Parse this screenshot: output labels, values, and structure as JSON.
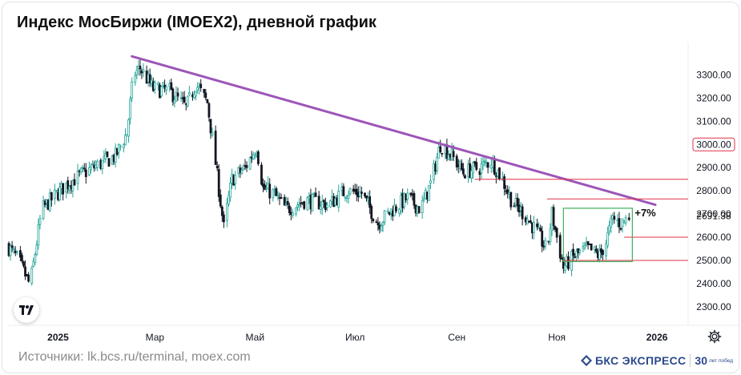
{
  "header": {
    "title": "Индекс МосБиржи (IMOEX2), дневной график"
  },
  "footer": {
    "source": "Источники: lk.bcs.ru/terminal, moex.com",
    "brand": "БКС ЭКСПРЕСС",
    "brand_badge": "30",
    "brand_badge_small": "лет побед"
  },
  "icons": {
    "platform_logo": "tradingview-logo-icon",
    "settings": "gear-icon",
    "brand_mark": "bcs-logo-icon"
  },
  "colors": {
    "up": "#26a69a",
    "down": "#131722",
    "trendline": "#9c56b8",
    "level_line": "#e0304a",
    "box": "#3fae5a",
    "current_price": "#111111"
  },
  "chart_data": {
    "type": "candlestick",
    "title": "Индекс МосБиржи (IMOEX2), дневной график",
    "x_range": [
      "2024-12-01",
      "2026-01-20"
    ],
    "ylim": [
      2220,
      3440
    ],
    "y_ticks": [
      "2300.00",
      "2400.00",
      "2500.00",
      "2600.00",
      "2700.00",
      "2800.00",
      "2900.00",
      "3000.00",
      "3100.00",
      "3200.00",
      "3300.00"
    ],
    "y_labels": {
      "2300.00": 2300,
      "2400.00": 2400,
      "2500.00": 2500,
      "2600.00": 2600,
      "2700.00": 2700,
      "2800.00": 2800,
      "2900.00": 2900,
      "3000.00": 3000,
      "3100.00": 3100,
      "3200.00": 3200,
      "3300.00": 3300
    },
    "x_ticks": [
      {
        "label": "2025",
        "date": "2025-01-01"
      },
      {
        "label": "Мар",
        "date": "2025-03-01"
      },
      {
        "label": "Май",
        "date": "2025-05-01"
      },
      {
        "label": "Июл",
        "date": "2025-07-01"
      },
      {
        "label": "Сен",
        "date": "2025-09-01"
      },
      {
        "label": "Ноя",
        "date": "2025-11-01"
      },
      {
        "label": "2026",
        "date": "2026-01-01"
      }
    ],
    "highlighted_labels": {
      "3000.00": 3000
    },
    "current_price": {
      "label": "2691.38",
      "value": 2691.38
    },
    "anchors": [
      [
        "2024-12-01",
        2565
      ],
      [
        "2024-12-08",
        2500
      ],
      [
        "2024-12-15",
        2390
      ],
      [
        "2024-12-22",
        2720
      ],
      [
        "2025-01-05",
        2820
      ],
      [
        "2025-01-15",
        2870
      ],
      [
        "2025-01-25",
        2910
      ],
      [
        "2025-02-05",
        2950
      ],
      [
        "2025-02-12",
        3050
      ],
      [
        "2025-02-16",
        3300
      ],
      [
        "2025-02-20",
        3330
      ],
      [
        "2025-02-28",
        3240
      ],
      [
        "2025-03-10",
        3230
      ],
      [
        "2025-03-20",
        3160
      ],
      [
        "2025-03-26",
        3260
      ],
      [
        "2025-04-02",
        3180
      ],
      [
        "2025-04-07",
        2920
      ],
      [
        "2025-04-12",
        2640
      ],
      [
        "2025-04-17",
        2850
      ],
      [
        "2025-04-25",
        2900
      ],
      [
        "2025-05-02",
        2990
      ],
      [
        "2025-05-06",
        2810
      ],
      [
        "2025-05-12",
        2790
      ],
      [
        "2025-05-20",
        2720
      ],
      [
        "2025-06-01",
        2760
      ],
      [
        "2025-06-15",
        2740
      ],
      [
        "2025-06-25",
        2800
      ],
      [
        "2025-07-05",
        2790
      ],
      [
        "2025-07-15",
        2660
      ],
      [
        "2025-07-24",
        2720
      ],
      [
        "2025-08-02",
        2770
      ],
      [
        "2025-08-10",
        2720
      ],
      [
        "2025-08-16",
        2830
      ],
      [
        "2025-08-22",
        3000
      ],
      [
        "2025-08-28",
        2960
      ],
      [
        "2025-09-05",
        2880
      ],
      [
        "2025-09-15",
        2900
      ],
      [
        "2025-09-22",
        2930
      ],
      [
        "2025-09-28",
        2860
      ],
      [
        "2025-10-05",
        2750
      ],
      [
        "2025-10-12",
        2700
      ],
      [
        "2025-10-20",
        2620
      ],
      [
        "2025-10-26",
        2540
      ],
      [
        "2025-10-29",
        2700
      ],
      [
        "2025-11-01",
        2600
      ],
      [
        "2025-11-05",
        2470
      ],
      [
        "2025-11-12",
        2520
      ],
      [
        "2025-11-20",
        2550
      ],
      [
        "2025-11-27",
        2520
      ],
      [
        "2025-12-01",
        2580
      ],
      [
        "2025-12-05",
        2680
      ],
      [
        "2025-12-10",
        2660
      ],
      [
        "2025-12-15",
        2690
      ]
    ],
    "annotations": {
      "trendline": {
        "from": [
          "2025-02-15",
          3380
        ],
        "to": [
          "2025-12-31",
          2740
        ]
      },
      "levels": [
        {
          "value": 2850,
          "from": "2025-09-12"
        },
        {
          "value": 2765,
          "from": "2025-10-26"
        },
        {
          "value": 2600,
          "from": "2025-12-12"
        },
        {
          "value": 2500,
          "from": "2025-11-05"
        }
      ],
      "box": {
        "from": "2025-11-05",
        "to": "2025-12-17",
        "top": 2725,
        "bottom": 2495
      },
      "box_label": "+7%"
    }
  }
}
